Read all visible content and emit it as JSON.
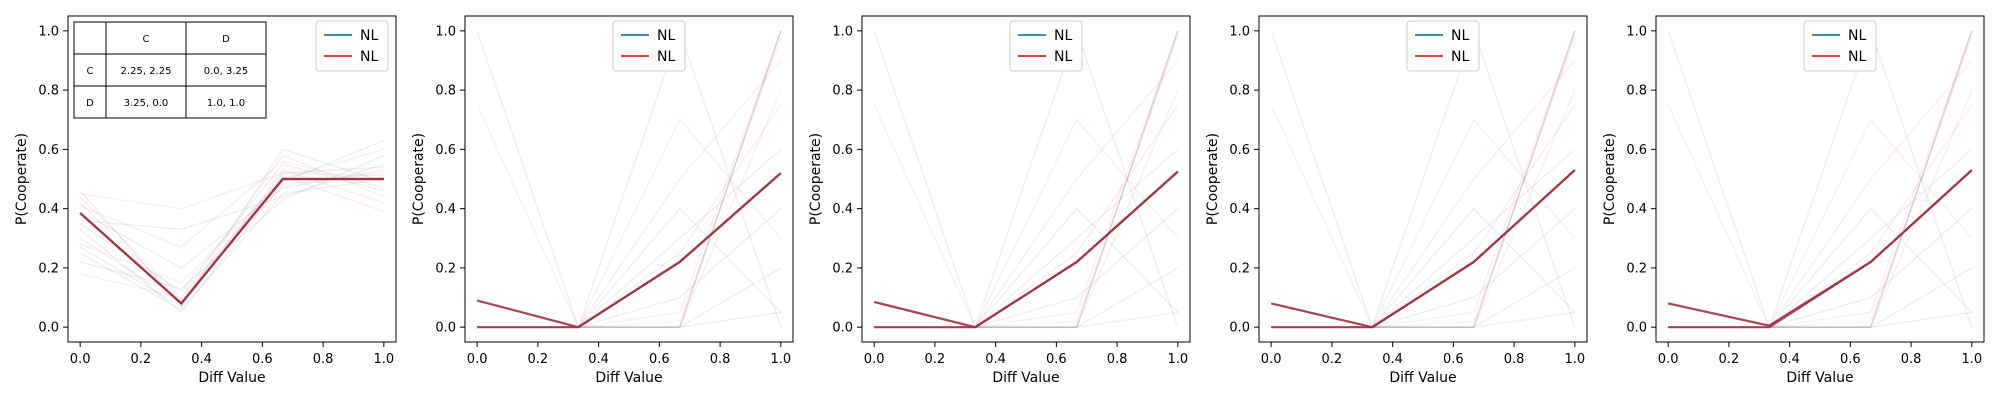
{
  "colors": {
    "nl_blue": "#1f77b4",
    "nl_red": "#d62728",
    "mean_line": "#a03040",
    "faint_blue": "#4060a0",
    "faint_red": "#e05070"
  },
  "payoff_table": {
    "col_headers": [
      "C",
      "D"
    ],
    "rows": [
      {
        "label": "C",
        "cells": [
          "2.25, 2.25",
          "0.0, 3.25"
        ]
      },
      {
        "label": "D",
        "cells": [
          "3.25, 0.0",
          "1.0, 1.0"
        ]
      }
    ]
  },
  "chart_data": [
    {
      "type": "line",
      "xlabel": "Diff Value",
      "ylabel": "P(Cooperate)",
      "xlim": [
        -0.04,
        1.04
      ],
      "ylim": [
        -0.05,
        1.05
      ],
      "xticks": [
        "0.0",
        "0.2",
        "0.4",
        "0.6",
        "0.8",
        "1.0"
      ],
      "yticks": [
        "0.0",
        "0.2",
        "0.4",
        "0.6",
        "0.8",
        "1.0"
      ],
      "legend": {
        "placement": "top-right",
        "entries": [
          "NL",
          "NL"
        ]
      },
      "x": [
        0.0,
        0.333,
        0.667,
        1.0
      ],
      "series": [
        {
          "name": "NL",
          "color_key": "nl_blue",
          "values": [
            0.385,
            0.08,
            0.5,
            0.5
          ]
        },
        {
          "name": "NL",
          "color_key": "nl_red",
          "values": [
            0.385,
            0.08,
            0.5,
            0.5
          ]
        }
      ],
      "faint_lines": [
        [
          0.46,
          0.07,
          0.52,
          0.54
        ],
        [
          0.42,
          0.09,
          0.48,
          0.52
        ],
        [
          0.35,
          0.12,
          0.55,
          0.46
        ],
        [
          0.28,
          0.15,
          0.5,
          0.6
        ],
        [
          0.25,
          0.06,
          0.45,
          0.5
        ],
        [
          0.44,
          0.1,
          0.58,
          0.44
        ],
        [
          0.39,
          0.2,
          0.47,
          0.53
        ],
        [
          0.3,
          0.08,
          0.53,
          0.42
        ],
        [
          0.22,
          0.13,
          0.43,
          0.58
        ],
        [
          0.18,
          0.1,
          0.51,
          0.39
        ],
        [
          0.33,
          0.05,
          0.49,
          0.63
        ],
        [
          0.41,
          0.27,
          0.56,
          0.47
        ],
        [
          0.36,
          0.33,
          0.44,
          0.55
        ],
        [
          0.45,
          0.4,
          0.52,
          0.51
        ],
        [
          0.27,
          0.07,
          0.6,
          0.49
        ]
      ],
      "inset_table": true
    },
    {
      "type": "line",
      "xlabel": "Diff Value",
      "ylabel": "P(Cooperate)",
      "xlim": [
        -0.04,
        1.04
      ],
      "ylim": [
        -0.05,
        1.05
      ],
      "xticks": [
        "0.0",
        "0.2",
        "0.4",
        "0.6",
        "0.8",
        "1.0"
      ],
      "yticks": [
        "0.0",
        "0.2",
        "0.4",
        "0.6",
        "0.8",
        "1.0"
      ],
      "legend": {
        "placement": "top-center",
        "entries": [
          "NL",
          "NL"
        ]
      },
      "x": [
        0.0,
        0.333,
        0.667,
        1.0
      ],
      "series": [
        {
          "name": "NL",
          "color_key": "nl_blue",
          "values": [
            0.0,
            0.0,
            0.22,
            0.52
          ]
        },
        {
          "name": "NL",
          "color_key": "nl_red",
          "values": [
            0.09,
            0.0,
            0.22,
            0.52
          ]
        }
      ],
      "faint_lines": [
        [
          1.0,
          0.0,
          0.0,
          1.0
        ],
        [
          0.75,
          0.0,
          0.0,
          1.0
        ],
        [
          0.0,
          0.0,
          1.0,
          0.0
        ],
        [
          0.0,
          0.0,
          0.5,
          0.9
        ],
        [
          0.0,
          0.0,
          0.3,
          0.6
        ],
        [
          0.0,
          0.0,
          0.0,
          0.8
        ],
        [
          0.0,
          0.0,
          0.1,
          0.4
        ],
        [
          0.0,
          0.0,
          0.7,
          0.3
        ],
        [
          0.0,
          0.0,
          0.0,
          0.05
        ],
        [
          0.0,
          0.0,
          0.05,
          1.0
        ],
        [
          0.0,
          0.0,
          0.0,
          0.2
        ],
        [
          0.0,
          0.0,
          0.25,
          0.75
        ],
        [
          0.0,
          0.0,
          0.0,
          1.0
        ],
        [
          0.0,
          0.0,
          0.02,
          0.98
        ],
        [
          0.0,
          0.0,
          0.4,
          0.05
        ]
      ],
      "inset_table": false
    },
    {
      "type": "line",
      "xlabel": "Diff Value",
      "ylabel": "P(Cooperate)",
      "xlim": [
        -0.04,
        1.04
      ],
      "ylim": [
        -0.05,
        1.05
      ],
      "xticks": [
        "0.0",
        "0.2",
        "0.4",
        "0.6",
        "0.8",
        "1.0"
      ],
      "yticks": [
        "0.0",
        "0.2",
        "0.4",
        "0.6",
        "0.8",
        "1.0"
      ],
      "legend": {
        "placement": "top-center",
        "entries": [
          "NL",
          "NL"
        ]
      },
      "x": [
        0.0,
        0.333,
        0.667,
        1.0
      ],
      "series": [
        {
          "name": "NL",
          "color_key": "nl_blue",
          "values": [
            0.0,
            0.0,
            0.22,
            0.525
          ]
        },
        {
          "name": "NL",
          "color_key": "nl_red",
          "values": [
            0.085,
            0.0,
            0.22,
            0.525
          ]
        }
      ],
      "faint_lines": [
        [
          1.0,
          0.0,
          0.0,
          1.0
        ],
        [
          0.75,
          0.0,
          0.0,
          1.0
        ],
        [
          0.0,
          0.0,
          1.0,
          0.0
        ],
        [
          0.0,
          0.0,
          0.5,
          0.9
        ],
        [
          0.0,
          0.0,
          0.3,
          0.6
        ],
        [
          0.0,
          0.0,
          0.0,
          0.8
        ],
        [
          0.0,
          0.0,
          0.1,
          0.4
        ],
        [
          0.0,
          0.0,
          0.7,
          0.3
        ],
        [
          0.0,
          0.0,
          0.0,
          0.05
        ],
        [
          0.0,
          0.0,
          0.05,
          1.0
        ],
        [
          0.0,
          0.0,
          0.0,
          0.2
        ],
        [
          0.0,
          0.0,
          0.25,
          0.75
        ],
        [
          0.0,
          0.0,
          0.0,
          1.0
        ],
        [
          0.0,
          0.0,
          0.02,
          0.98
        ],
        [
          0.0,
          0.0,
          0.4,
          0.05
        ]
      ],
      "inset_table": false
    },
    {
      "type": "line",
      "xlabel": "Diff Value",
      "ylabel": "P(Cooperate)",
      "xlim": [
        -0.04,
        1.04
      ],
      "ylim": [
        -0.05,
        1.05
      ],
      "xticks": [
        "0.0",
        "0.2",
        "0.4",
        "0.6",
        "0.8",
        "1.0"
      ],
      "yticks": [
        "0.0",
        "0.2",
        "0.4",
        "0.6",
        "0.8",
        "1.0"
      ],
      "legend": {
        "placement": "top-center",
        "entries": [
          "NL",
          "NL"
        ]
      },
      "x": [
        0.0,
        0.333,
        0.667,
        1.0
      ],
      "series": [
        {
          "name": "NL",
          "color_key": "nl_blue",
          "values": [
            0.0,
            0.0,
            0.22,
            0.53
          ]
        },
        {
          "name": "NL",
          "color_key": "nl_red",
          "values": [
            0.08,
            0.0,
            0.22,
            0.53
          ]
        }
      ],
      "faint_lines": [
        [
          1.0,
          0.0,
          0.0,
          1.0
        ],
        [
          0.75,
          0.0,
          0.0,
          1.0
        ],
        [
          0.0,
          0.0,
          1.0,
          0.0
        ],
        [
          0.0,
          0.0,
          0.5,
          0.9
        ],
        [
          0.0,
          0.0,
          0.3,
          0.6
        ],
        [
          0.0,
          0.0,
          0.0,
          0.8
        ],
        [
          0.0,
          0.0,
          0.1,
          0.4
        ],
        [
          0.0,
          0.0,
          0.7,
          0.3
        ],
        [
          0.0,
          0.0,
          0.0,
          0.05
        ],
        [
          0.0,
          0.0,
          0.05,
          1.0
        ],
        [
          0.0,
          0.0,
          0.0,
          0.2
        ],
        [
          0.0,
          0.0,
          0.25,
          0.75
        ],
        [
          0.0,
          0.0,
          0.0,
          1.0
        ],
        [
          0.0,
          0.0,
          0.02,
          0.98
        ],
        [
          0.0,
          0.0,
          0.4,
          0.05
        ]
      ],
      "inset_table": false
    },
    {
      "type": "line",
      "xlabel": "Diff Value",
      "ylabel": "P(Cooperate)",
      "xlim": [
        -0.04,
        1.04
      ],
      "ylim": [
        -0.05,
        1.05
      ],
      "xticks": [
        "0.0",
        "0.2",
        "0.4",
        "0.6",
        "0.8",
        "1.0"
      ],
      "yticks": [
        "0.0",
        "0.2",
        "0.4",
        "0.6",
        "0.8",
        "1.0"
      ],
      "legend": {
        "placement": "top-center",
        "entries": [
          "NL",
          "NL"
        ]
      },
      "x": [
        0.0,
        0.333,
        0.667,
        1.0
      ],
      "series": [
        {
          "name": "NL",
          "color_key": "nl_blue",
          "values": [
            0.0,
            0.0,
            0.22,
            0.53
          ]
        },
        {
          "name": "NL",
          "color_key": "nl_red",
          "values": [
            0.08,
            0.005,
            0.22,
            0.53
          ]
        }
      ],
      "faint_lines": [
        [
          1.0,
          0.0,
          0.0,
          1.0
        ],
        [
          0.75,
          0.0,
          0.0,
          1.0
        ],
        [
          0.0,
          0.0,
          1.0,
          0.0
        ],
        [
          0.0,
          0.0,
          0.5,
          0.9
        ],
        [
          0.0,
          0.0,
          0.3,
          0.6
        ],
        [
          0.0,
          0.0,
          0.0,
          0.8
        ],
        [
          0.0,
          0.0,
          0.1,
          0.4
        ],
        [
          0.0,
          0.0,
          0.7,
          0.3
        ],
        [
          0.0,
          0.0,
          0.0,
          0.05
        ],
        [
          0.0,
          0.0,
          0.05,
          1.0
        ],
        [
          0.0,
          0.0,
          0.0,
          0.2
        ],
        [
          0.0,
          0.0,
          0.25,
          0.75
        ],
        [
          0.0,
          0.0,
          0.0,
          1.0
        ],
        [
          0.0,
          0.0,
          0.02,
          0.98
        ],
        [
          0.0,
          0.0,
          0.4,
          0.05
        ]
      ],
      "inset_table": false
    }
  ]
}
